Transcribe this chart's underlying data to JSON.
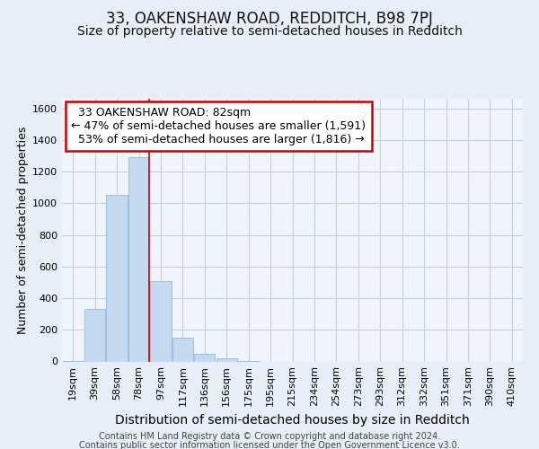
{
  "title": "33, OAKENSHAW ROAD, REDDITCH, B98 7PJ",
  "subtitle": "Size of property relative to semi-detached houses in Redditch",
  "xlabel": "Distribution of semi-detached houses by size in Redditch",
  "ylabel": "Number of semi-detached properties",
  "footer_line1": "Contains HM Land Registry data © Crown copyright and database right 2024.",
  "footer_line2": "Contains public sector information licensed under the Open Government Licence v3.0.",
  "categories": [
    "19sqm",
    "39sqm",
    "58sqm",
    "78sqm",
    "97sqm",
    "117sqm",
    "136sqm",
    "156sqm",
    "175sqm",
    "195sqm",
    "215sqm",
    "234sqm",
    "254sqm",
    "273sqm",
    "293sqm",
    "312sqm",
    "332sqm",
    "351sqm",
    "371sqm",
    "390sqm",
    "410sqm"
  ],
  "values": [
    5,
    330,
    1055,
    1290,
    510,
    150,
    50,
    18,
    5,
    0,
    0,
    0,
    0,
    0,
    0,
    0,
    0,
    0,
    0,
    0,
    0
  ],
  "bar_color": "#c5d9f1",
  "bar_edge_color": "#9dbfe0",
  "property_sqm": 82,
  "property_label": "33 OAKENSHAW ROAD: 82sqm",
  "pct_smaller": 47,
  "pct_larger": 53,
  "num_smaller": 1591,
  "num_larger": 1816,
  "vline_color": "#cc0000",
  "annotation_box_color": "#cc0000",
  "ylim": [
    0,
    1660
  ],
  "yticks": [
    0,
    200,
    400,
    600,
    800,
    1000,
    1200,
    1400,
    1600
  ],
  "bg_color": "#e8eef8",
  "plot_bg_color": "#f0f4fb",
  "grid_color": "#c8d0df",
  "title_fontsize": 12,
  "subtitle_fontsize": 10,
  "xlabel_fontsize": 10,
  "ylabel_fontsize": 9,
  "tick_fontsize": 8,
  "ann_fontsize": 9,
  "footer_fontsize": 7
}
